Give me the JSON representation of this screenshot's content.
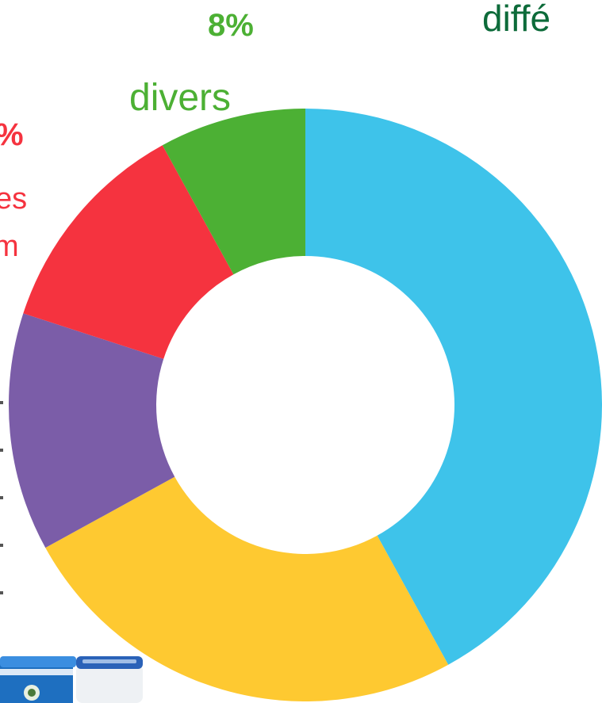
{
  "chart_data": {
    "type": "pie",
    "style": "donut",
    "title": "diffé",
    "categories": [
      "blue",
      "yellow",
      "purple",
      "red",
      "divers"
    ],
    "values": [
      42,
      25,
      13,
      12,
      8
    ],
    "colors": [
      "#3ec3ea",
      "#fec931",
      "#7b5da8",
      "#f5333f",
      "#4cb034"
    ],
    "labels": [
      {
        "value_text": "8%",
        "name": "divers"
      },
      {
        "value_text": "%",
        "lines": [
          "es",
          "m"
        ]
      }
    ],
    "legend": "none",
    "grid": false
  },
  "colors": {
    "title": "#0d6b3a",
    "background": "#ffffff"
  },
  "image": {
    "icon": "product-jars-photo"
  }
}
